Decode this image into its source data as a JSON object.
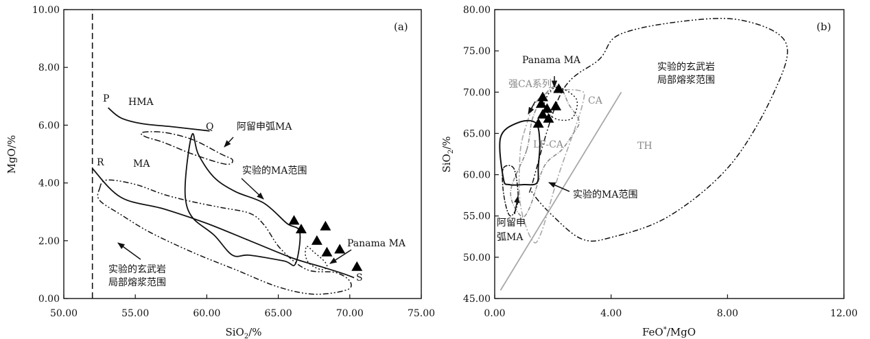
{
  "colors": {
    "ink": "#111111",
    "gray": "#8a8a8a",
    "light_gray": "#a8a8a8",
    "marker": "#000000"
  },
  "chart_data": [
    {
      "type": "scatter",
      "panel_label": "(a)",
      "xlabel": "SiO2/%",
      "ylabel": "MgO/%",
      "xlim": [
        50,
        75
      ],
      "ylim": [
        0,
        10
      ],
      "x_ticks": [
        "50.00",
        "55.00",
        "60.00",
        "65.00",
        "70.00",
        "75.00"
      ],
      "y_ticks": [
        "0.00",
        "2.00",
        "4.00",
        "6.00",
        "8.00",
        "10.00"
      ],
      "divider_x": 52,
      "series": [
        {
          "name": "Panama MA",
          "marker": "filled-triangle",
          "points": [
            [
              66.1,
              2.7
            ],
            [
              66.6,
              2.4
            ],
            [
              67.7,
              2.0
            ],
            [
              68.3,
              2.5
            ],
            [
              68.4,
              1.6
            ],
            [
              69.3,
              1.7
            ],
            [
              70.5,
              1.1
            ]
          ]
        }
      ],
      "lines": {
        "P_Q": [
          [
            53.1,
            6.6
          ],
          [
            54,
            6.25
          ],
          [
            55.5,
            6.05
          ],
          [
            57.5,
            5.95
          ],
          [
            60.2,
            5.8
          ]
        ],
        "R_S": [
          [
            52,
            4.5
          ],
          [
            54,
            3.5
          ],
          [
            57,
            3.1
          ],
          [
            60,
            2.6
          ],
          [
            63,
            2.0
          ],
          [
            66,
            1.4
          ],
          [
            68,
            1.1
          ],
          [
            69.6,
            0.85
          ],
          [
            70.3,
            0.72
          ]
        ],
        "divider": [
          [
            52,
            0
          ],
          [
            52,
            10
          ]
        ]
      },
      "regions": {
        "experimental_basalt_melt": [
          [
            52.5,
            3.8
          ],
          [
            53,
            4.1
          ],
          [
            55,
            3.95
          ],
          [
            57,
            3.6
          ],
          [
            59,
            3.35
          ],
          [
            61,
            3.15
          ],
          [
            63,
            2.95
          ],
          [
            64,
            2.55
          ],
          [
            65.2,
            1.7
          ],
          [
            67,
            1.0
          ],
          [
            69,
            0.9
          ],
          [
            70,
            0.6
          ],
          [
            69.8,
            0.3
          ],
          [
            67.5,
            0.15
          ],
          [
            65,
            0.4
          ],
          [
            62,
            1.0
          ],
          [
            59,
            1.6
          ],
          [
            56,
            2.3
          ],
          [
            54,
            2.9
          ],
          [
            52.5,
            3.4
          ]
        ],
        "experimental_MA": [
          [
            59,
            5.7
          ],
          [
            59.4,
            5.0
          ],
          [
            60.5,
            4.2
          ],
          [
            62,
            3.7
          ],
          [
            64,
            3.3
          ],
          [
            65.6,
            2.6
          ],
          [
            66.5,
            2.3
          ],
          [
            66.2,
            1.2
          ],
          [
            65.4,
            1.3
          ],
          [
            63,
            1.5
          ],
          [
            61.8,
            1.5
          ],
          [
            60.5,
            2.2
          ],
          [
            59,
            2.8
          ],
          [
            58.5,
            3.5
          ],
          [
            58.6,
            4.6
          ]
        ],
        "aleutian_MA": [
          [
            55.5,
            5.75
          ],
          [
            57,
            5.75
          ],
          [
            59,
            5.5
          ],
          [
            61,
            5.0
          ],
          [
            61.8,
            4.8
          ],
          [
            61.3,
            4.65
          ],
          [
            59,
            5.0
          ],
          [
            57,
            5.4
          ],
          [
            55.7,
            5.6
          ]
        ],
        "panama_MA": [
          [
            67,
            1.8
          ],
          [
            67.5,
            1.6
          ],
          [
            68.2,
            1.3
          ],
          [
            68.4,
            1.1
          ],
          [
            68,
            1.0
          ],
          [
            67.2,
            1.2
          ],
          [
            66.9,
            1.5
          ]
        ]
      },
      "annotations": {
        "P": "P",
        "Q": "Q",
        "R": "R",
        "S": "S",
        "HMA": "HMA",
        "MA": "MA",
        "aleutian_MA": "阿留申弧MA",
        "experimental_MA": "实验的MA范围",
        "panama_MA": "Panama MA",
        "basalt_line1": "实验的玄武岩",
        "basalt_line2": "局部熔浆范围"
      }
    },
    {
      "type": "scatter",
      "panel_label": "(b)",
      "xlabel": "FeO*/MgO",
      "ylabel": "SiO2/%",
      "xlim": [
        0,
        12
      ],
      "ylim": [
        45,
        80
      ],
      "x_ticks": [
        "0.00",
        "4.00",
        "8.00",
        "12.00"
      ],
      "y_ticks": [
        "45.00",
        "50.00",
        "55.00",
        "60.00",
        "65.00",
        "70.00",
        "75.00",
        "80.00"
      ],
      "series": [
        {
          "name": "Panama MA",
          "marker": "filled-triangle",
          "points": [
            [
              1.5,
              66.2
            ],
            [
              1.65,
              67.3
            ],
            [
              1.6,
              68.6
            ],
            [
              1.65,
              69.4
            ],
            [
              1.85,
              66.8
            ],
            [
              1.8,
              68.0
            ],
            [
              2.1,
              68.3
            ],
            [
              2.2,
              70.4
            ]
          ]
        }
      ],
      "lines": {
        "TH_CA_boundary": [
          [
            0.2,
            46
          ],
          [
            4.35,
            70
          ]
        ]
      },
      "regions": {
        "experimental_basalt_melt": [
          [
            1.3,
            59
          ],
          [
            2.3,
            70
          ],
          [
            3.6,
            74
          ],
          [
            4.3,
            77
          ],
          [
            6.5,
            78.6
          ],
          [
            8.5,
            78.7
          ],
          [
            10,
            76
          ],
          [
            9.6,
            70
          ],
          [
            8.1,
            61.2
          ],
          [
            6,
            55
          ],
          [
            4,
            52.4
          ],
          [
            3,
            52.2
          ],
          [
            2,
            55
          ],
          [
            1.3,
            57.8
          ]
        ],
        "experimental_MA": [
          [
            0.3,
            59.5
          ],
          [
            0.2,
            64.5
          ],
          [
            0.8,
            66.3
          ],
          [
            1.4,
            66.3
          ],
          [
            1.55,
            64
          ],
          [
            1.5,
            61
          ],
          [
            1.45,
            59
          ],
          [
            1.0,
            58.8
          ],
          [
            0.5,
            58.8
          ]
        ],
        "strong_CA": [
          [
            1.1,
            63
          ],
          [
            1.3,
            66.8
          ],
          [
            1.7,
            69.6
          ],
          [
            2.2,
            70.8
          ],
          [
            2.55,
            68.5
          ],
          [
            2.9,
            66.5
          ],
          [
            2.7,
            65
          ],
          [
            2.3,
            63
          ],
          [
            1.7,
            61
          ],
          [
            1.2,
            56
          ],
          [
            0.9,
            55
          ],
          [
            0.55,
            58
          ]
        ],
        "low_Fe_CA": [
          [
            1.0,
            65
          ],
          [
            1.6,
            69.5
          ],
          [
            2.9,
            70.2
          ],
          [
            3.0,
            68.3
          ],
          [
            2.2,
            60
          ],
          [
            1.6,
            53
          ],
          [
            1.3,
            52
          ],
          [
            0.9,
            56
          ],
          [
            0.85,
            61
          ]
        ],
        "aleutian_MA": [
          [
            0.3,
            60.8
          ],
          [
            0.65,
            60.8
          ],
          [
            0.8,
            58
          ],
          [
            0.75,
            56
          ],
          [
            0.55,
            55
          ],
          [
            0.4,
            56
          ],
          [
            0.28,
            58.5
          ]
        ],
        "panama_MA": [
          [
            1.7,
            68.6
          ],
          [
            2.1,
            70.6
          ],
          [
            2.8,
            69.2
          ],
          [
            2.7,
            67
          ],
          [
            2.3,
            66.6
          ],
          [
            1.9,
            67.2
          ]
        ]
      },
      "annotations": {
        "panama_MA": "Panama MA",
        "basalt_line1": "实验的玄武岩",
        "basalt_line2": "局部熔浆范围",
        "strong_CA": "强CA系列",
        "CA": "CA",
        "TH": "TH",
        "LFCA": "LF-CA",
        "experimental_MA": "实验的MA范围",
        "aleutian_line1": "阿留申",
        "aleutian_line2": "弧MA"
      }
    }
  ]
}
